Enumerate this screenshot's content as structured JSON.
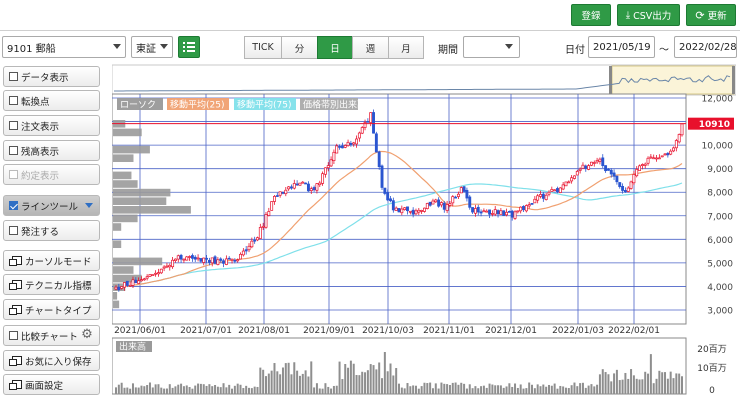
{
  "toolbar": {
    "register_label": "登録",
    "csv_label": "CSV出力",
    "refresh_label": "更新"
  },
  "controls": {
    "symbol": "9101 郵船",
    "exchange": "東証",
    "period_label": "期間",
    "period_value": "",
    "date_label": "日付",
    "date_from": "2021/05/19",
    "date_sep": "～",
    "date_to": "2022/02/28",
    "interval_tabs": [
      {
        "label": "TICK",
        "active": false
      },
      {
        "label": "分",
        "active": false
      },
      {
        "label": "日",
        "active": true
      },
      {
        "label": "週",
        "active": false
      },
      {
        "label": "月",
        "active": false
      }
    ]
  },
  "sidebar": {
    "items": [
      {
        "label": "データ表示",
        "kind": "checkbox",
        "checked": false,
        "disabled": false
      },
      {
        "label": "転換点",
        "kind": "checkbox",
        "checked": false,
        "disabled": false
      },
      {
        "label": "注文表示",
        "kind": "checkbox",
        "checked": false,
        "disabled": false
      },
      {
        "label": "残高表示",
        "kind": "checkbox",
        "checked": false,
        "disabled": false
      },
      {
        "label": "約定表示",
        "kind": "checkbox",
        "checked": false,
        "disabled": true
      },
      {
        "label": "ラインツール",
        "kind": "checkbox",
        "checked": true,
        "disabled": false
      },
      {
        "label": "発注する",
        "kind": "checkbox",
        "checked": false,
        "disabled": false
      },
      {
        "label": "カーソルモード",
        "kind": "window",
        "checked": false,
        "disabled": false
      },
      {
        "label": "テクニカル指標",
        "kind": "window",
        "checked": false,
        "disabled": false
      },
      {
        "label": "チャートタイプ",
        "kind": "window",
        "checked": false,
        "disabled": false
      },
      {
        "label": "比較チャート",
        "kind": "checkbox",
        "checked": false,
        "disabled": false
      },
      {
        "label": "お気に入り保存",
        "kind": "window",
        "checked": false,
        "disabled": false
      },
      {
        "label": "画面設定",
        "kind": "window",
        "checked": false,
        "disabled": false
      }
    ]
  },
  "chart_data": {
    "type": "candlestick",
    "legend": [
      {
        "label": "ローソク",
        "color": "#999999"
      },
      {
        "label": "移動平均(25)",
        "color": "#f0a070"
      },
      {
        "label": "移動平均(75)",
        "color": "#7fe0ea"
      },
      {
        "label": "価格帯別出来高",
        "color": "#aaaaaa"
      }
    ],
    "y_ticks": [
      "12,000",
      "11,000",
      "10,000",
      "9,000",
      "8,000",
      "7,000",
      "6,000",
      "5,000",
      "4,000",
      "3,000"
    ],
    "y_values": [
      12000,
      11000,
      10000,
      9000,
      8000,
      7000,
      6000,
      5000,
      4000,
      3000
    ],
    "ylim": [
      3000,
      12000
    ],
    "x_ticks": [
      "2021/06/01",
      "2021/07/01",
      "2021/08/01",
      "2021/09/01",
      "2021/10/03",
      "2021/11/01",
      "2021/12/01",
      "2022/01/03",
      "2022/02/01"
    ],
    "last_price": "10910",
    "last_price_value": 10910,
    "price_line_color": "#e8102c",
    "ma25_color": "#f0a070",
    "ma75_color": "#7fe0ea",
    "up_color": "#e8102c",
    "down_color": "#2a55d0",
    "close_anchors": [
      [
        0,
        3930
      ],
      [
        8,
        4250
      ],
      [
        15,
        4500
      ],
      [
        22,
        5250
      ],
      [
        30,
        5150
      ],
      [
        38,
        5050
      ],
      [
        43,
        5100
      ],
      [
        50,
        6100
      ],
      [
        56,
        7800
      ],
      [
        64,
        8450
      ],
      [
        70,
        8050
      ],
      [
        78,
        9900
      ],
      [
        84,
        10200
      ],
      [
        90,
        11300
      ],
      [
        94,
        8200
      ],
      [
        98,
        7300
      ],
      [
        105,
        7150
      ],
      [
        112,
        7600
      ],
      [
        117,
        7350
      ],
      [
        122,
        8200
      ],
      [
        126,
        7250
      ],
      [
        134,
        7150
      ],
      [
        140,
        7050
      ],
      [
        146,
        7550
      ],
      [
        152,
        7900
      ],
      [
        158,
        8200
      ],
      [
        164,
        9000
      ],
      [
        170,
        9450
      ],
      [
        176,
        8600
      ],
      [
        180,
        8050
      ],
      [
        184,
        8900
      ],
      [
        188,
        9350
      ],
      [
        192,
        9550
      ],
      [
        197,
        9800
      ],
      [
        200,
        10900
      ]
    ],
    "volume_title": "出来高",
    "volume_ticks": [
      "20百万",
      "10百万",
      "0"
    ],
    "volume_values": [
      20,
      10,
      0
    ],
    "volume_unit": "百万",
    "volume_profile_count": 22
  }
}
